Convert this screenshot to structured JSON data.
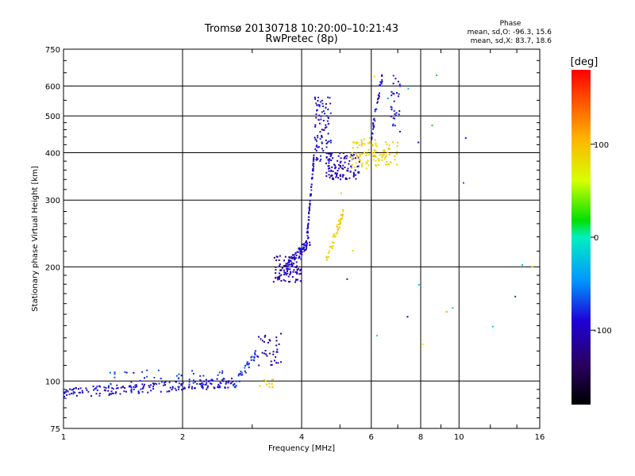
{
  "chart_data": {
    "type": "scatter",
    "title_line1": "Tromsø 20130718 10:20:00–10:21:43",
    "title_line2": "RwPretec (8p)",
    "xlabel": "Frequency [MHz]",
    "ylabel": "Stationary phase Virtual Height [km]",
    "xscale": "log",
    "yscale": "log",
    "xlim": [
      1,
      16
    ],
    "ylim": [
      75,
      750
    ],
    "x_ticks": [
      1,
      2,
      4,
      6,
      8,
      10,
      16
    ],
    "x_tick_labels": [
      "1",
      "2",
      "4",
      "6",
      "8",
      "10",
      "16"
    ],
    "y_ticks": [
      75,
      100,
      200,
      300,
      400,
      500,
      600,
      750
    ],
    "y_tick_labels": [
      "75",
      "100",
      "200",
      "300",
      "400",
      "500",
      "600",
      "750"
    ],
    "grid": true,
    "stats": {
      "heading": "Phase",
      "line_o": "mean, sd,O: -96.3, 15.6",
      "line_x": "mean, sd,X: 83.7, 18.6"
    },
    "colorbar": {
      "label": "[deg]",
      "range": [
        -180,
        180
      ],
      "ticks": [
        100,
        0,
        -100
      ],
      "tick_labels": [
        "100",
        "0",
        "-100"
      ]
    },
    "clusters": [
      {
        "name": "low-band-trace",
        "phase": -100,
        "x0": 1.0,
        "x1": 2.7,
        "y0": 93,
        "y1": 99,
        "n": 200,
        "shape": "ramp"
      },
      {
        "name": "low-band-scatter",
        "phase": -85,
        "x0": 1.3,
        "x1": 2.6,
        "y0": 98,
        "y1": 107,
        "n": 40,
        "shape": "box"
      },
      {
        "name": "e-layer-rise",
        "phase": -85,
        "x0": 2.7,
        "x1": 3.1,
        "y0": 98,
        "y1": 120,
        "n": 40,
        "shape": "ramp"
      },
      {
        "name": "e-layer-purple",
        "phase": -120,
        "x0": 3.1,
        "x1": 3.55,
        "y0": 110,
        "y1": 135,
        "n": 35,
        "shape": "box"
      },
      {
        "name": "e-layer-yellow",
        "phase": 95,
        "x0": 3.1,
        "x1": 3.4,
        "y0": 96,
        "y1": 101,
        "n": 10,
        "shape": "box"
      },
      {
        "name": "f1-purple-base",
        "phase": -115,
        "x0": 3.4,
        "x1": 4.0,
        "y0": 182,
        "y1": 215,
        "n": 90,
        "shape": "box"
      },
      {
        "name": "f1-blue-base",
        "phase": -100,
        "x0": 3.6,
        "x1": 4.2,
        "y0": 195,
        "y1": 235,
        "n": 70,
        "shape": "ramp"
      },
      {
        "name": "f-rise-blue",
        "phase": -100,
        "x0": 4.1,
        "x1": 4.3,
        "y0": 220,
        "y1": 390,
        "n": 70,
        "shape": "ramp"
      },
      {
        "name": "f-upper-blue",
        "phase": -100,
        "x0": 4.3,
        "x1": 4.75,
        "y0": 380,
        "y1": 560,
        "n": 90,
        "shape": "box"
      },
      {
        "name": "f-trough-blue",
        "phase": -110,
        "x0": 4.6,
        "x1": 5.6,
        "y0": 340,
        "y1": 400,
        "n": 110,
        "shape": "box"
      },
      {
        "name": "x-trace-yellow",
        "phase": 95,
        "x0": 4.6,
        "x1": 5.1,
        "y0": 205,
        "y1": 280,
        "n": 45,
        "shape": "ramp"
      },
      {
        "name": "x-upper-yellow",
        "phase": 90,
        "x0": 5.3,
        "x1": 6.2,
        "y0": 360,
        "y1": 440,
        "n": 60,
        "shape": "box"
      },
      {
        "name": "x-right-yellow",
        "phase": 90,
        "x0": 6.0,
        "x1": 7.0,
        "y0": 370,
        "y1": 430,
        "n": 50,
        "shape": "box"
      },
      {
        "name": "f2-blue-rise",
        "phase": -100,
        "x0": 6.0,
        "x1": 6.4,
        "y0": 440,
        "y1": 640,
        "n": 40,
        "shape": "ramp"
      },
      {
        "name": "f2-blue-top",
        "phase": -100,
        "x0": 6.7,
        "x1": 7.1,
        "y0": 430,
        "y1": 650,
        "n": 30,
        "shape": "box"
      },
      {
        "name": "noise-sparse",
        "phase": 0,
        "x0": 5.0,
        "x1": 15.5,
        "y0": 110,
        "y1": 650,
        "n": 22,
        "shape": "box"
      }
    ]
  }
}
